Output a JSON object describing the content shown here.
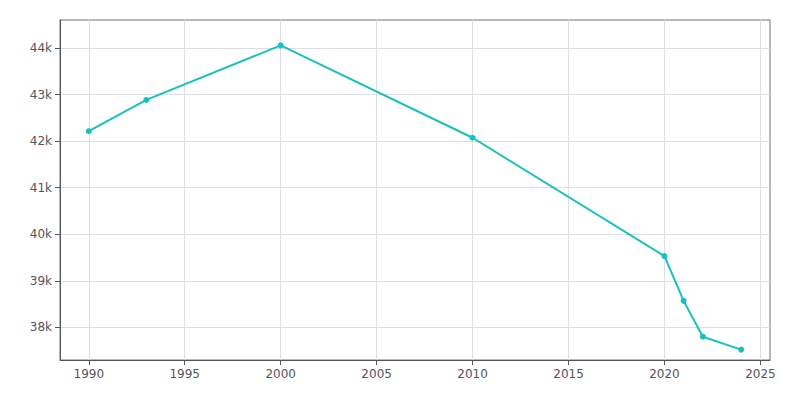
{
  "chart_data": {
    "type": "line",
    "x": [
      1990,
      1993,
      2000,
      2010,
      2020,
      2021,
      2022,
      2024
    ],
    "values": [
      42213,
      42884,
      44054,
      42072,
      39531,
      38570,
      37800,
      37523
    ],
    "color": "#1ABFBF",
    "marker": "circle",
    "xlim": [
      1988.5,
      2025.5
    ],
    "ylim": [
      37300,
      44600
    ],
    "xticks": [
      1990,
      1995,
      2000,
      2005,
      2010,
      2015,
      2020,
      2025
    ],
    "yticks": [
      {
        "value": 38000,
        "label": "38k"
      },
      {
        "value": 39000,
        "label": "39k"
      },
      {
        "value": 40000,
        "label": "40k"
      },
      {
        "value": 41000,
        "label": "41k"
      },
      {
        "value": 42000,
        "label": "42k"
      },
      {
        "value": 43000,
        "label": "43k"
      },
      {
        "value": 44000,
        "label": "44k"
      }
    ],
    "grid": true
  }
}
